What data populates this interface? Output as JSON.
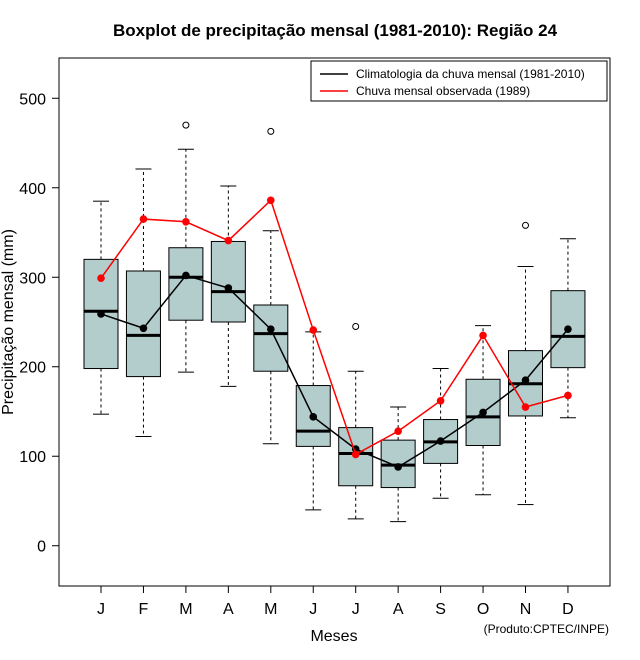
{
  "chart_data": {
    "type": "boxplot",
    "title": "Boxplot de precipitação mensal (1981-2010): Região 24",
    "xlabel": "Meses",
    "ylabel": "Precipitação mensal (mm)",
    "ylim": [
      -45,
      545
    ],
    "yticks": [
      0,
      100,
      200,
      300,
      400,
      500
    ],
    "categories": [
      "J",
      "F",
      "M",
      "A",
      "M",
      "J",
      "J",
      "A",
      "S",
      "O",
      "N",
      "D"
    ],
    "boxes": [
      {
        "whisker_low": 147,
        "q1": 198,
        "median": 262,
        "q3": 320,
        "whisker_high": 385,
        "outliers": []
      },
      {
        "whisker_low": 122,
        "q1": 189,
        "median": 235,
        "q3": 307,
        "whisker_high": 421,
        "outliers": []
      },
      {
        "whisker_low": 194,
        "q1": 252,
        "median": 300,
        "q3": 333,
        "whisker_high": 443,
        "outliers": [
          470
        ]
      },
      {
        "whisker_low": 178,
        "q1": 250,
        "median": 284,
        "q3": 340,
        "whisker_high": 402,
        "outliers": []
      },
      {
        "whisker_low": 114,
        "q1": 195,
        "median": 237,
        "q3": 269,
        "whisker_high": 352,
        "outliers": [
          463
        ]
      },
      {
        "whisker_low": 40,
        "q1": 111,
        "median": 128,
        "q3": 179,
        "whisker_high": 239,
        "outliers": []
      },
      {
        "whisker_low": 30,
        "q1": 67,
        "median": 103,
        "q3": 132,
        "whisker_high": 195,
        "outliers": [
          245
        ]
      },
      {
        "whisker_low": 27,
        "q1": 65,
        "median": 90,
        "q3": 118,
        "whisker_high": 155,
        "outliers": []
      },
      {
        "whisker_low": 53,
        "q1": 92,
        "median": 116,
        "q3": 141,
        "whisker_high": 198,
        "outliers": []
      },
      {
        "whisker_low": 57,
        "q1": 112,
        "median": 144,
        "q3": 186,
        "whisker_high": 246,
        "outliers": []
      },
      {
        "whisker_low": 46,
        "q1": 145,
        "median": 181,
        "q3": 218,
        "whisker_high": 312,
        "outliers": [
          358
        ]
      },
      {
        "whisker_low": 143,
        "q1": 199,
        "median": 234,
        "q3": 285,
        "whisker_high": 343,
        "outliers": []
      }
    ],
    "series": [
      {
        "name": "Climatologia da chuva mensal (1981-2010)",
        "color": "#000000",
        "values": [
          259,
          243,
          302,
          288,
          242,
          144,
          108,
          88,
          117,
          149,
          185,
          242
        ]
      },
      {
        "name": "Chuva mensal observada (1989)",
        "color": "#ff0000",
        "values": [
          299,
          365,
          362,
          341,
          386,
          241,
          102,
          128,
          162,
          235,
          155,
          168
        ]
      }
    ],
    "box_fill": "#b3cccc",
    "credit": "(Produto:CPTEC/INPE)"
  }
}
